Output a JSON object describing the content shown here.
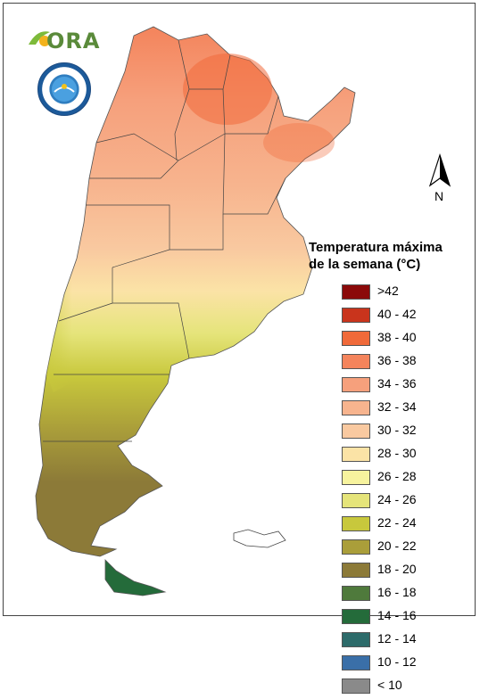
{
  "header": {
    "logo_text": "ORA",
    "seal_text": "SERVICIO METEOROLOGICO NACIONAL ARGENTINA"
  },
  "compass": {
    "label": "N"
  },
  "legend": {
    "title_line1": "Temperatura máxima",
    "title_line2": "de la semana (°C)",
    "items": [
      {
        "label": ">42",
        "color": "#8b0a0a"
      },
      {
        "label": "40 - 42",
        "color": "#c9341c"
      },
      {
        "label": "38 - 40",
        "color": "#f06a3a"
      },
      {
        "label": "36 - 38",
        "color": "#f4845c"
      },
      {
        "label": "34 - 36",
        "color": "#f6a07c"
      },
      {
        "label": "32 - 34",
        "color": "#f7b48e"
      },
      {
        "label": "30 - 32",
        "color": "#f9c9a0"
      },
      {
        "label": "28 - 30",
        "color": "#fbe3a6"
      },
      {
        "label": "26 - 28",
        "color": "#f7f39e"
      },
      {
        "label": "24 - 26",
        "color": "#e5e47a"
      },
      {
        "label": "22 - 24",
        "color": "#c8c83c"
      },
      {
        "label": "20 - 22",
        "color": "#aa9e3a"
      },
      {
        "label": "18 - 20",
        "color": "#8c7a38"
      },
      {
        "label": "16 - 18",
        "color": "#4f7a3c"
      },
      {
        "label": "14 - 16",
        "color": "#246b3a"
      },
      {
        "label": "12 - 14",
        "color": "#2d6b6a"
      },
      {
        "label": "10 - 12",
        "color": "#3a6fa8"
      },
      {
        "label": "< 10",
        "color": "#8a8a8a"
      }
    ]
  }
}
